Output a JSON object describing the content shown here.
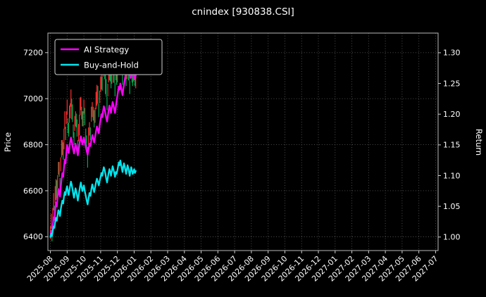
{
  "figure": {
    "background": "#000000",
    "text_color": "#ffffff",
    "grid_color": "#565656"
  },
  "chart_data": {
    "type": "candlestick+line",
    "title": "cnindex [930838.CSI]",
    "left_axis": {
      "label": "Price",
      "ticks": [
        6400,
        6600,
        6800,
        7000,
        7200
      ],
      "lim": [
        6340,
        7285
      ]
    },
    "right_axis": {
      "label": "Return",
      "ticks": [
        "1.00",
        "1.05",
        "1.10",
        "1.15",
        "1.20",
        "1.25",
        "1.30"
      ],
      "lim": [
        0.978,
        1.332
      ]
    },
    "x_axis": {
      "lim": [
        -0.15,
        23.15
      ],
      "rotation": 45,
      "tick_labels": [
        "2025-08",
        "2025-09",
        "2025-10",
        "2025-11",
        "2025-12",
        "2026-01",
        "2026-02",
        "2026-03",
        "2026-04",
        "2026-05",
        "2026-06",
        "2026-07",
        "2026-08",
        "2026-09",
        "2026-10",
        "2026-11",
        "2026-12",
        "2027-01",
        "2027-02",
        "2027-03",
        "2027-04",
        "2027-05",
        "2027-06",
        "2027-07"
      ]
    },
    "grid": {
      "on": true,
      "style": "dotted"
    },
    "legend": [
      {
        "label": "AI Strategy",
        "color": "#ff00ff"
      },
      {
        "label": "Buy-and-Hold",
        "color": "#00e5ee"
      }
    ],
    "candles": {
      "up_color": "#ff2e2e",
      "down_color": "#00a94f",
      "month_counts": [
        21,
        22,
        18,
        21,
        23,
        3
      ],
      "month_denominators": [
        21,
        22,
        18,
        21,
        23,
        21
      ],
      "hlc": [
        [
          6445,
          6390,
          6420
        ],
        [
          6500,
          6435,
          6455
        ],
        [
          6445,
          6380,
          6430
        ],
        [
          6525,
          6465,
          6490
        ],
        [
          6590,
          6515,
          6530
        ],
        [
          6535,
          6470,
          6515
        ],
        [
          6620,
          6545,
          6580
        ],
        [
          6650,
          6560,
          6620
        ],
        [
          6645,
          6568,
          6590
        ],
        [
          6668,
          6610,
          6650
        ],
        [
          6725,
          6670,
          6700
        ],
        [
          6725,
          6660,
          6680
        ],
        [
          6655,
          6590,
          6640
        ],
        [
          6745,
          6685,
          6710
        ],
        [
          6820,
          6745,
          6760
        ],
        [
          6820,
          6755,
          6800
        ],
        [
          6810,
          6735,
          6770
        ],
        [
          6870,
          6780,
          6840
        ],
        [
          6945,
          6868,
          6890
        ],
        [
          6878,
          6820,
          6860
        ],
        [
          6945,
          6890,
          6920
        ],
        [
          6995,
          6930,
          6950
        ],
        [
          6915,
          6850,
          6900
        ],
        [
          6895,
          6835,
          6860
        ],
        [
          6970,
          6895,
          6910
        ],
        [
          6980,
          6915,
          6960
        ],
        [
          7040,
          6965,
          7000
        ],
        [
          7000,
          6910,
          6970
        ],
        [
          6975,
          6898,
          6920
        ],
        [
          6888,
          6830,
          6870
        ],
        [
          6855,
          6800,
          6830
        ],
        [
          6925,
          6860,
          6880
        ],
        [
          6945,
          6880,
          6930
        ],
        [
          6935,
          6875,
          6900
        ],
        [
          6910,
          6835,
          6850
        ],
        [
          6820,
          6755,
          6800
        ],
        [
          6890,
          6815,
          6850
        ],
        [
          6930,
          6840,
          6900
        ],
        [
          7005,
          6928,
          6950
        ],
        [
          7008,
          6950,
          6990
        ],
        [
          6965,
          6910,
          6940
        ],
        [
          6945,
          6880,
          6900
        ],
        [
          6945,
          6880,
          6930
        ],
        [
          6995,
          6935,
          6960
        ],
        [
          6960,
          6885,
          6900
        ],
        [
          6870,
          6805,
          6850
        ],
        [
          6840,
          6765,
          6800
        ],
        [
          6790,
          6700,
          6760
        ],
        [
          6875,
          6798,
          6820
        ],
        [
          6898,
          6840,
          6880
        ],
        [
          6875,
          6820,
          6850
        ],
        [
          6965,
          6900,
          6920
        ],
        [
          6985,
          6920,
          6970
        ],
        [
          6965,
          6905,
          6930
        ],
        [
          6950,
          6875,
          6890
        ],
        [
          6960,
          6895,
          6940
        ],
        [
          7030,
          6955,
          6990
        ],
        [
          7060,
          6970,
          7030
        ],
        [
          7055,
          6978,
          7000
        ],
        [
          6978,
          6920,
          6960
        ],
        [
          7035,
          6980,
          7010
        ],
        [
          7095,
          7030,
          7050
        ],
        [
          7105,
          7040,
          7090
        ],
        [
          7095,
          7035,
          7060
        ],
        [
          7170,
          7095,
          7110
        ],
        [
          7170,
          7105,
          7150
        ],
        [
          7160,
          7085,
          7120
        ],
        [
          7110,
          7020,
          7080
        ],
        [
          7085,
          7008,
          7030
        ],
        [
          7008,
          6950,
          6990
        ],
        [
          7065,
          7010,
          7040
        ],
        [
          7135,
          7070,
          7090
        ],
        [
          7145,
          7080,
          7130
        ],
        [
          7135,
          7075,
          7100
        ],
        [
          7120,
          7045,
          7060
        ],
        [
          7130,
          7065,
          7110
        ],
        [
          7200,
          7125,
          7160
        ],
        [
          7160,
          7070,
          7130
        ],
        [
          7145,
          7068,
          7090
        ],
        [
          7068,
          7010,
          7050
        ],
        [
          7145,
          7080,
          7100
        ],
        [
          7125,
          7060,
          7080
        ],
        [
          7135,
          7070,
          7120
        ],
        [
          7195,
          7135,
          7160
        ],
        [
          7245,
          7185,
          7200
        ],
        [
          7190,
          7125,
          7170
        ],
        [
          7240,
          7185,
          7220
        ],
        [
          7210,
          7120,
          7180
        ],
        [
          7195,
          7118,
          7140
        ],
        [
          7118,
          7060,
          7100
        ],
        [
          7175,
          7110,
          7150
        ],
        [
          7235,
          7170,
          7190
        ],
        [
          7175,
          7110,
          7160
        ],
        [
          7155,
          7095,
          7120
        ],
        [
          7140,
          7055,
          7080
        ],
        [
          7150,
          7085,
          7130
        ],
        [
          7210,
          7135,
          7170
        ],
        [
          7170,
          7080,
          7140
        ],
        [
          7155,
          7078,
          7100
        ],
        [
          7078,
          7020,
          7060
        ],
        [
          7155,
          7090,
          7110
        ],
        [
          7195,
          7130,
          7150
        ],
        [
          7135,
          7070,
          7120
        ],
        [
          7115,
          7055,
          7080
        ],
        [
          7160,
          7075,
          7100
        ],
        [
          7150,
          7080,
          7130
        ],
        [
          7130,
          7055,
          7090
        ],
        [
          7140,
          7045,
          7110
        ]
      ]
    },
    "series": [
      {
        "name": "AI Strategy",
        "axis": "right",
        "color": "#ff00ff",
        "values": [
          1.0,
          1.01,
          1.006,
          1.02,
          1.032,
          1.028,
          1.044,
          1.056,
          1.05,
          1.065,
          1.078,
          1.072,
          1.066,
          1.082,
          1.094,
          1.104,
          1.098,
          1.113,
          1.126,
          1.12,
          1.138,
          1.15,
          1.143,
          1.137,
          1.146,
          1.155,
          1.162,
          1.157,
          1.149,
          1.142,
          1.136,
          1.144,
          1.152,
          1.147,
          1.14,
          1.133,
          1.141,
          1.149,
          1.158,
          1.164,
          1.157,
          1.151,
          1.156,
          1.162,
          1.154,
          1.147,
          1.14,
          1.134,
          1.143,
          1.152,
          1.148,
          1.158,
          1.166,
          1.16,
          1.154,
          1.163,
          1.172,
          1.18,
          1.175,
          1.169,
          1.183,
          1.192,
          1.2,
          1.195,
          1.205,
          1.213,
          1.208,
          1.201,
          1.194,
          1.188,
          1.197,
          1.206,
          1.214,
          1.209,
          1.202,
          1.211,
          1.22,
          1.215,
          1.208,
          1.202,
          1.212,
          1.221,
          1.23,
          1.238,
          1.245,
          1.24,
          1.25,
          1.244,
          1.237,
          1.231,
          1.24,
          1.248,
          1.255,
          1.262,
          1.27,
          1.28,
          1.273,
          1.265,
          1.272,
          1.266,
          1.259,
          1.266,
          1.273,
          1.267,
          1.261,
          1.266,
          1.258,
          1.263
        ]
      },
      {
        "name": "Buy-and-Hold",
        "axis": "right",
        "color": "#00e5ee",
        "values": [
          1.0,
          1.0055,
          1.0016,
          1.0109,
          1.0171,
          1.0148,
          1.0249,
          1.0312,
          1.0265,
          1.0358,
          1.0436,
          1.0405,
          1.0343,
          1.0452,
          1.053,
          1.0592,
          1.0545,
          1.0654,
          1.0732,
          1.0685,
          1.0779,
          1.0826,
          1.0748,
          1.0685,
          1.0763,
          1.0841,
          1.0903,
          1.0857,
          1.0779,
          1.0701,
          1.0639,
          1.0717,
          1.0794,
          1.0748,
          1.067,
          1.0592,
          1.067,
          1.0748,
          1.0826,
          1.0888,
          1.081,
          1.0748,
          1.0794,
          1.0841,
          1.0748,
          1.067,
          1.0592,
          1.053,
          1.0623,
          1.0717,
          1.067,
          1.0779,
          1.0857,
          1.0794,
          1.0732,
          1.081,
          1.0888,
          1.095,
          1.0903,
          1.0841,
          1.0919,
          1.0981,
          1.1044,
          1.0997,
          1.1075,
          1.1137,
          1.109,
          1.1028,
          1.095,
          1.0888,
          1.0966,
          1.1044,
          1.1106,
          1.1059,
          1.0997,
          1.1075,
          1.1153,
          1.1106,
          1.1044,
          1.0981,
          1.1059,
          1.1028,
          1.109,
          1.1153,
          1.1215,
          1.1168,
          1.1246,
          1.1184,
          1.1121,
          1.1059,
          1.1137,
          1.1199,
          1.1153,
          1.109,
          1.1028,
          1.1106,
          1.1168,
          1.1121,
          1.1059,
          1.0997,
          1.1075,
          1.1137,
          1.109,
          1.1028,
          1.1059,
          1.1106,
          1.1044,
          1.1075
        ]
      }
    ]
  }
}
